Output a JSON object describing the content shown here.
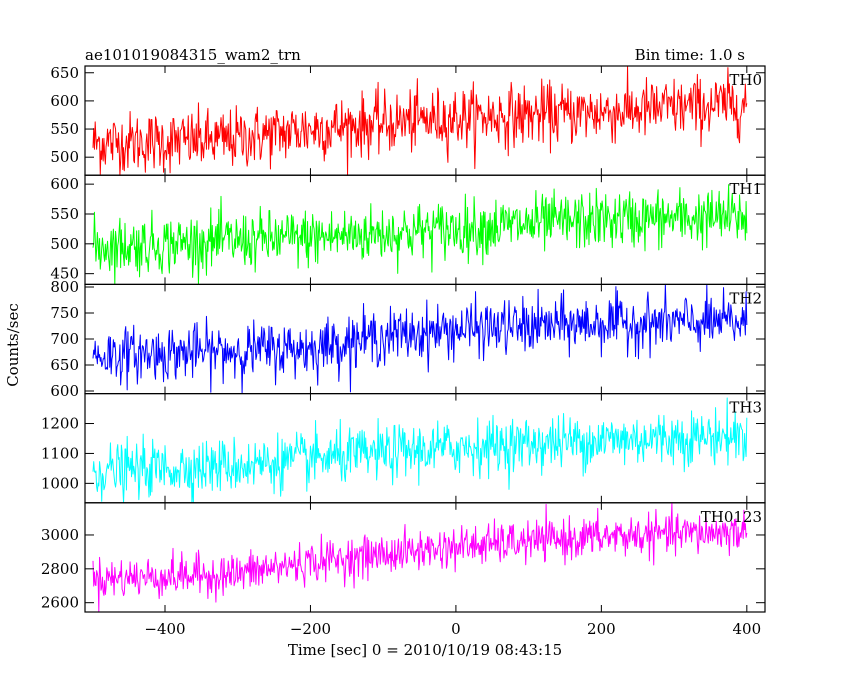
{
  "header": {
    "left_title": "ae101019084315_wam2_trn",
    "right_title": "Bin time: 1.0 s"
  },
  "chart_data": {
    "type": "line",
    "xlabel": "Time [sec] 0 = 2010/10/19 08:43:15",
    "ylabel": "Counts/sec",
    "xlim": [
      -510,
      425
    ],
    "x_ticks": [
      -400,
      -200,
      0,
      200,
      400
    ],
    "x_tick_labels": [
      "−400",
      "−200",
      "0",
      "200",
      "400"
    ],
    "x_data_range": [
      -499,
      400
    ],
    "bin_time_s": 1.0,
    "grid": false,
    "panels": [
      {
        "name": "TH0",
        "color": "#ff0000",
        "ylim": [
          468,
          662
        ],
        "y_ticks": [
          500,
          550,
          600,
          650
        ],
        "trend": [
          [
            -499,
            525
          ],
          [
            -320,
            530
          ],
          [
            -200,
            550
          ],
          [
            0,
            570
          ],
          [
            200,
            580
          ],
          [
            400,
            595
          ]
        ],
        "noise_sd": 27
      },
      {
        "name": "TH1",
        "color": "#00ff00",
        "ylim": [
          432,
          615
        ],
        "y_ticks": [
          450,
          500,
          550,
          600
        ],
        "trend": [
          [
            -499,
            495
          ],
          [
            -200,
            510
          ],
          [
            0,
            525
          ],
          [
            200,
            540
          ],
          [
            400,
            545
          ]
        ],
        "noise_sd": 24
      },
      {
        "name": "TH2",
        "color": "#0000ff",
        "ylim": [
          595,
          805
        ],
        "y_ticks": [
          600,
          650,
          700,
          750,
          800
        ],
        "trend": [
          [
            -499,
            668
          ],
          [
            -200,
            682
          ],
          [
            -130,
            700
          ],
          [
            0,
            718
          ],
          [
            200,
            730
          ],
          [
            400,
            732
          ]
        ],
        "noise_sd": 26
      },
      {
        "name": "TH3",
        "color": "#00ffff",
        "ylim": [
          935,
          1300
        ],
        "y_ticks": [
          1000,
          1100,
          1200
        ],
        "trend": [
          [
            -499,
            1040
          ],
          [
            -300,
            1060
          ],
          [
            -200,
            1080
          ],
          [
            0,
            1120
          ],
          [
            200,
            1145
          ],
          [
            400,
            1160
          ]
        ],
        "noise_sd": 45
      },
      {
        "name": "TH0123",
        "color": "#ff00ff",
        "ylim": [
          2545,
          3190
        ],
        "y_ticks": [
          2600,
          2800,
          3000
        ],
        "trend": [
          [
            -499,
            2740
          ],
          [
            -300,
            2770
          ],
          [
            -200,
            2840
          ],
          [
            0,
            2930
          ],
          [
            200,
            2990
          ],
          [
            400,
            3020
          ]
        ],
        "noise_sd": 60
      }
    ]
  }
}
